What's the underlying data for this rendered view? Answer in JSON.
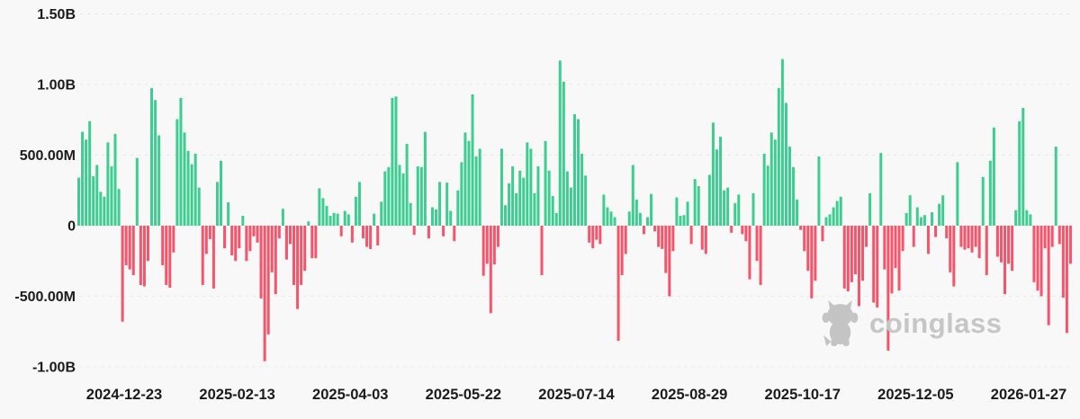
{
  "chart_data": {
    "type": "bar",
    "title": "",
    "xlabel": "",
    "ylabel": "",
    "values_unit": "USD (millions); positive = inflow (green), negative = outflow (red)",
    "grid": true,
    "legend": false,
    "background_color": "#f8f8f8",
    "positive_color": "#3ecd90",
    "negative_color": "#f5546a",
    "gridline_color": "#e7e7e7",
    "axis_text_color": "#1b1b1b",
    "ylim": [
      -1150,
      1500
    ],
    "y_ticks": [
      {
        "label": "1.50B",
        "value": 1500
      },
      {
        "label": "1.00B",
        "value": 1000
      },
      {
        "label": "500.00M",
        "value": 500
      },
      {
        "label": "0",
        "value": 0
      },
      {
        "label": "-500.00M",
        "value": -500
      },
      {
        "label": "-1.00B",
        "value": -1000
      }
    ],
    "x_axis_labels": [
      "2024-12-23",
      "2025-02-13",
      "2025-04-03",
      "2025-05-22",
      "2025-07-14",
      "2025-08-29",
      "2025-10-17",
      "2025-12-05",
      "2026-01-27"
    ],
    "values": [
      340,
      665,
      610,
      740,
      350,
      430,
      240,
      205,
      590,
      420,
      650,
      260,
      -680,
      -280,
      -310,
      -350,
      480,
      -420,
      -430,
      -250,
      975,
      890,
      640,
      -280,
      -420,
      -440,
      -190,
      755,
      905,
      660,
      530,
      435,
      510,
      270,
      -420,
      -200,
      -95,
      -445,
      310,
      460,
      -160,
      165,
      -210,
      -250,
      -160,
      70,
      -250,
      -180,
      -75,
      -120,
      -515,
      -960,
      -770,
      -330,
      -485,
      -90,
      120,
      -240,
      -130,
      -420,
      -590,
      -420,
      -320,
      30,
      -230,
      -230,
      265,
      195,
      140,
      70,
      90,
      85,
      -75,
      105,
      80,
      -120,
      205,
      310,
      -90,
      -150,
      -165,
      85,
      -140,
      170,
      385,
      415,
      905,
      915,
      430,
      370,
      580,
      160,
      -65,
      420,
      415,
      665,
      -90,
      130,
      115,
      310,
      -75,
      305,
      105,
      -110,
      250,
      450,
      660,
      600,
      930,
      490,
      545,
      -355,
      -270,
      -620,
      -275,
      -150,
      545,
      145,
      300,
      420,
      230,
      390,
      340,
      590,
      545,
      230,
      420,
      -350,
      600,
      390,
      210,
      90,
      1170,
      1020,
      385,
      270,
      790,
      755,
      510,
      355,
      -120,
      -160,
      -100,
      -130,
      220,
      130,
      100,
      60,
      -815,
      -350,
      -200,
      100,
      430,
      185,
      90,
      -60,
      60,
      225,
      -40,
      -150,
      -165,
      -335,
      -500,
      -180,
      200,
      70,
      75,
      170,
      -130,
      330,
      280,
      -170,
      -200,
      360,
      730,
      540,
      630,
      250,
      270,
      -50,
      160,
      220,
      -60,
      -110,
      -380,
      230,
      -250,
      -420,
      510,
      425,
      660,
      610,
      975,
      1180,
      870,
      560,
      415,
      185,
      -30,
      -180,
      -320,
      -515,
      -390,
      490,
      -110,
      60,
      80,
      130,
      175,
      205,
      -445,
      -465,
      -400,
      -345,
      -570,
      -390,
      -150,
      230,
      -545,
      -580,
      515,
      -310,
      -885,
      -480,
      -300,
      -460,
      -180,
      90,
      215,
      -150,
      130,
      60,
      75,
      -200,
      95,
      -80,
      155,
      215,
      -90,
      -330,
      -430,
      450,
      -150,
      -170,
      -160,
      -190,
      -150,
      -230,
      345,
      -350,
      460,
      695,
      -220,
      -260,
      -485,
      -270,
      -320,
      110,
      740,
      835,
      110,
      80,
      -400,
      -460,
      -500,
      -160,
      -705,
      -150,
      560,
      -130,
      -510,
      -760,
      -270
    ]
  },
  "watermark": {
    "text": "coinglass"
  }
}
